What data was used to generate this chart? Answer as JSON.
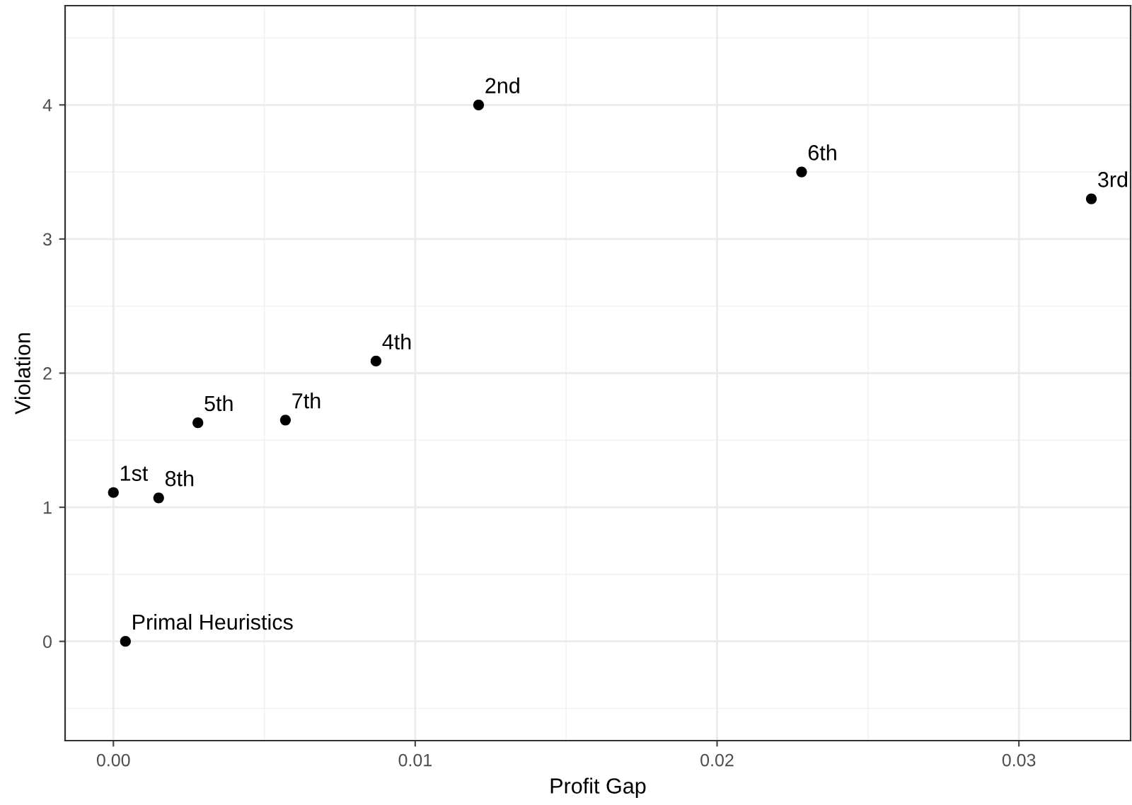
{
  "chart_data": {
    "type": "scatter",
    "xlabel": "Profit Gap",
    "ylabel": "Violation",
    "x": [
      0.0,
      0.0015,
      0.0028,
      0.0057,
      0.0087,
      0.0004,
      0.0121,
      0.0228,
      0.0324
    ],
    "values": [
      1.11,
      1.07,
      1.63,
      1.65,
      2.09,
      0,
      4.0,
      3.5,
      3.3
    ],
    "color": "#000000",
    "marker": "circle",
    "grid": true,
    "annotations": [
      {
        "text": "1st",
        "x": 0.0,
        "y": 1.11
      },
      {
        "text": "8th",
        "x": 0.0015,
        "y": 1.07
      },
      {
        "text": "5th",
        "x": 0.0028,
        "y": 1.63
      },
      {
        "text": "7th",
        "x": 0.0057,
        "y": 1.65
      },
      {
        "text": "4th",
        "x": 0.0087,
        "y": 2.09
      },
      {
        "text": "Primal Heuristics",
        "x": 0.0004,
        "y": 0
      },
      {
        "text": "2nd",
        "x": 0.0121,
        "y": 4.0
      },
      {
        "text": "6th",
        "x": 0.0228,
        "y": 3.5
      },
      {
        "text": "3rd",
        "x": 0.0324,
        "y": 3.3
      }
    ],
    "xlim": [
      -0.0016,
      0.0337
    ],
    "ylim": [
      -0.74,
      4.74
    ],
    "xticks": [
      {
        "value": 0,
        "label": "0.00"
      },
      {
        "value": 0.01,
        "label": "0.01"
      },
      {
        "value": 0.02,
        "label": "0.02"
      },
      {
        "value": 0.03,
        "label": "0.03"
      }
    ],
    "yticks": [
      0,
      1,
      2,
      3,
      4
    ]
  }
}
